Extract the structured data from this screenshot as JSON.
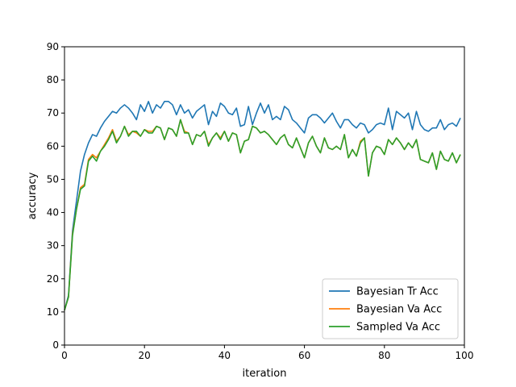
{
  "chart_data": {
    "type": "line",
    "title": "",
    "xlabel": "iteration",
    "ylabel": "accuracy",
    "xlim": [
      0,
      100
    ],
    "ylim": [
      0,
      90
    ],
    "xticks": [
      0,
      20,
      40,
      60,
      80,
      100
    ],
    "yticks": [
      0,
      10,
      20,
      30,
      40,
      50,
      60,
      70,
      80,
      90
    ],
    "grid": false,
    "legend_position": "lower-right",
    "series": [
      {
        "name": "Bayesian Tr Acc",
        "color": "#1f77b4",
        "values": [
          10.5,
          15.0,
          34.5,
          43.5,
          52.5,
          57.5,
          61.0,
          63.5,
          63.0,
          65.5,
          67.5,
          69.0,
          70.5,
          70.0,
          71.5,
          72.5,
          71.5,
          70.0,
          68.0,
          72.5,
          70.5,
          73.5,
          70.0,
          72.5,
          71.5,
          73.5,
          73.5,
          72.5,
          69.5,
          72.5,
          70.0,
          71.0,
          68.5,
          70.5,
          71.5,
          72.5,
          66.5,
          70.5,
          69.0,
          73.0,
          72.0,
          70.0,
          69.5,
          71.5,
          66.0,
          66.5,
          72.0,
          66.5,
          70.0,
          73.0,
          70.0,
          72.5,
          68.0,
          69.0,
          68.0,
          72.0,
          71.0,
          68.0,
          67.0,
          65.5,
          64.0,
          68.5,
          69.5,
          69.5,
          68.5,
          67.0,
          68.5,
          70.0,
          67.5,
          65.5,
          68.0,
          68.0,
          66.5,
          65.5,
          67.0,
          66.5,
          64.0,
          65.0,
          66.5,
          67.0,
          66.5,
          71.5,
          65.0,
          70.5,
          69.5,
          68.5,
          70.0,
          65.0,
          70.5,
          66.5,
          65.0,
          64.5,
          65.5,
          65.5,
          68.0,
          65.0,
          66.5,
          67.0,
          66.0,
          68.5
        ]
      },
      {
        "name": "Bayesian Va Acc",
        "color": "#ff7f0e",
        "values": [
          10.5,
          14.5,
          33.5,
          41.0,
          47.5,
          48.5,
          56.0,
          57.5,
          56.5,
          58.5,
          60.5,
          62.5,
          65.0,
          61.5,
          63.0,
          66.0,
          63.5,
          64.5,
          64.0,
          63.0,
          65.0,
          64.5,
          64.5,
          66.0,
          65.5,
          62.0,
          65.5,
          65.0,
          63.0,
          68.0,
          64.5,
          64.0,
          60.5,
          63.5,
          63.0,
          64.5,
          60.5,
          62.5,
          64.0,
          62.5,
          64.5,
          61.5,
          64.0,
          63.5,
          58.0,
          61.5,
          62.0,
          66.0,
          65.5,
          64.0,
          64.5,
          63.5,
          62.0,
          60.5,
          62.5,
          63.5,
          60.5,
          59.5,
          62.5,
          59.5,
          56.5,
          61.0,
          63.0,
          60.0,
          58.0,
          62.5,
          59.5,
          59.0,
          60.0,
          59.0,
          63.5,
          56.5,
          59.0,
          57.0,
          61.5,
          62.5,
          51.0,
          58.0,
          60.0,
          59.5,
          57.5,
          62.0,
          60.5,
          62.5,
          61.0,
          59.0,
          61.0,
          59.5,
          62.0,
          56.0,
          55.5,
          55.0,
          58.0,
          53.0,
          58.5,
          56.0,
          55.5,
          58.0,
          55.0,
          57.5
        ]
      },
      {
        "name": "Sampled Va Acc",
        "color": "#2ca02c",
        "values": [
          10.5,
          14.5,
          33.0,
          41.0,
          47.0,
          48.0,
          55.5,
          57.0,
          55.5,
          58.5,
          60.0,
          62.0,
          64.5,
          61.0,
          63.0,
          66.0,
          63.0,
          64.5,
          64.5,
          63.0,
          65.0,
          64.0,
          64.0,
          66.0,
          65.5,
          62.0,
          65.5,
          65.0,
          63.0,
          68.0,
          64.0,
          64.0,
          60.5,
          63.5,
          63.0,
          64.5,
          60.0,
          62.5,
          64.0,
          62.0,
          64.5,
          61.5,
          64.0,
          63.5,
          58.0,
          61.5,
          62.0,
          66.0,
          65.5,
          64.0,
          64.5,
          63.5,
          62.0,
          60.5,
          62.5,
          63.5,
          60.5,
          59.5,
          62.5,
          59.5,
          56.5,
          61.0,
          63.0,
          60.0,
          58.0,
          62.5,
          59.5,
          59.0,
          60.0,
          59.0,
          63.5,
          56.5,
          59.0,
          57.0,
          61.0,
          62.5,
          51.0,
          58.0,
          60.0,
          59.5,
          57.5,
          62.0,
          60.5,
          62.5,
          61.0,
          59.0,
          61.0,
          59.5,
          62.0,
          56.0,
          55.5,
          55.0,
          58.0,
          53.0,
          58.5,
          56.0,
          55.5,
          58.0,
          55.0,
          57.5
        ]
      }
    ]
  }
}
